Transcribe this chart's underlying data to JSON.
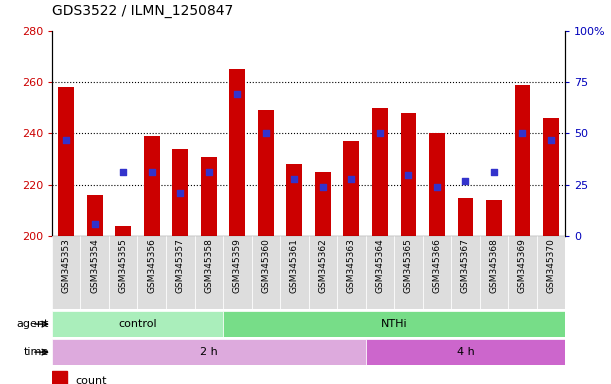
{
  "title": "GDS3522 / ILMN_1250847",
  "samples": [
    "GSM345353",
    "GSM345354",
    "GSM345355",
    "GSM345356",
    "GSM345357",
    "GSM345358",
    "GSM345359",
    "GSM345360",
    "GSM345361",
    "GSM345362",
    "GSM345363",
    "GSM345364",
    "GSM345365",
    "GSM345366",
    "GSM345367",
    "GSM345368",
    "GSM345369",
    "GSM345370"
  ],
  "count_values": [
    258,
    216,
    204,
    239,
    234,
    231,
    265,
    249,
    228,
    225,
    237,
    250,
    248,
    240,
    215,
    214,
    259,
    246
  ],
  "percentile_values": [
    47,
    6,
    31,
    31,
    21,
    31,
    69,
    50,
    28,
    24,
    28,
    50,
    30,
    24,
    27,
    31,
    50,
    47
  ],
  "bar_color": "#cc0000",
  "dot_color": "#3333cc",
  "y_min": 200,
  "y_max": 280,
  "y_ticks": [
    200,
    220,
    240,
    260,
    280
  ],
  "y2_ticks": [
    0,
    25,
    50,
    75,
    100
  ],
  "agent_groups": [
    {
      "label": "control",
      "start": 0,
      "end": 6,
      "color": "#aaeebb"
    },
    {
      "label": "NTHi",
      "start": 6,
      "end": 18,
      "color": "#77dd88"
    }
  ],
  "time_groups": [
    {
      "label": "2 h",
      "start": 0,
      "end": 11,
      "color": "#ddaadd"
    },
    {
      "label": "4 h",
      "start": 11,
      "end": 18,
      "color": "#cc66cc"
    }
  ],
  "bar_width": 0.55,
  "dot_size": 22,
  "bar_color_r": "#cc0000",
  "dot_color_b": "#0000bb",
  "ylabel_color": "#cc0000",
  "y2label_color": "#0000bb"
}
